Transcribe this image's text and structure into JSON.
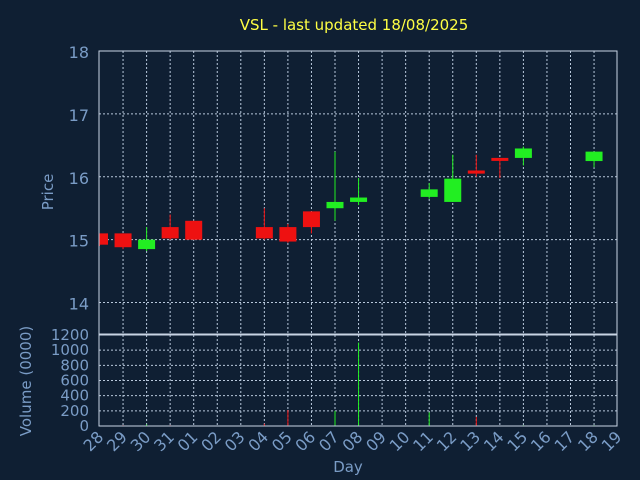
{
  "chart_data": {
    "type": "candlestick",
    "title": "VSL - last updated 18/08/2025",
    "xlabel": "Day",
    "ylabel": "Price",
    "volume_label": "Volume (0000)",
    "x_ticks": [
      "28",
      "29",
      "30",
      "31",
      "01",
      "02",
      "03",
      "04",
      "05",
      "06",
      "07",
      "08",
      "09",
      "10",
      "11",
      "12",
      "13",
      "14",
      "15",
      "16",
      "17",
      "18",
      "19"
    ],
    "price_ylim": [
      13.5,
      18
    ],
    "price_ticks": [
      14,
      15,
      16,
      17,
      18
    ],
    "volume_ylim": [
      0,
      1200
    ],
    "volume_ticks": [
      0,
      200,
      400,
      600,
      800,
      1000,
      1200
    ],
    "grid": true,
    "colors": {
      "background": "#0f1f33",
      "up": "#22ee22",
      "down": "#ee1111",
      "title": "#ffff44",
      "axis_text": "#7a9cc6",
      "grid": "#b8c8dc",
      "frame": "#c8d4e4"
    },
    "candles": [
      {
        "day": "28",
        "open": 15.1,
        "high": 15.1,
        "low": 14.9,
        "close": 14.92,
        "volume": 0
      },
      {
        "day": "29",
        "open": 15.1,
        "high": 15.1,
        "low": 14.85,
        "close": 14.88,
        "volume": 10
      },
      {
        "day": "30",
        "open": 14.85,
        "high": 15.2,
        "low": 14.82,
        "close": 15.0,
        "volume": 20
      },
      {
        "day": "31",
        "open": 15.2,
        "high": 15.4,
        "low": 15.0,
        "close": 15.02,
        "volume": 10
      },
      {
        "day": "01",
        "open": 15.3,
        "high": 15.3,
        "low": 15.0,
        "close": 15.0,
        "volume": 5
      },
      {
        "day": "04",
        "open": 15.2,
        "high": 15.5,
        "low": 15.0,
        "close": 15.02,
        "volume": 30
      },
      {
        "day": "05",
        "open": 15.2,
        "high": 15.25,
        "low": 14.95,
        "close": 14.97,
        "volume": 210
      },
      {
        "day": "06",
        "open": 15.45,
        "high": 15.45,
        "low": 15.1,
        "close": 15.2,
        "volume": 0
      },
      {
        "day": "07",
        "open": 15.5,
        "high": 16.4,
        "low": 15.3,
        "close": 15.6,
        "volume": 200
      },
      {
        "day": "08",
        "open": 15.6,
        "high": 15.98,
        "low": 15.55,
        "close": 15.67,
        "volume": 1100
      },
      {
        "day": "11",
        "open": 15.68,
        "high": 15.9,
        "low": 15.65,
        "close": 15.8,
        "volume": 180
      },
      {
        "day": "12",
        "open": 15.6,
        "high": 16.35,
        "low": 15.6,
        "close": 15.97,
        "volume": 0
      },
      {
        "day": "13",
        "open": 16.1,
        "high": 16.35,
        "low": 16.0,
        "close": 16.05,
        "volume": 120
      },
      {
        "day": "14",
        "open": 16.3,
        "high": 16.3,
        "low": 15.98,
        "close": 16.26,
        "volume": 0
      },
      {
        "day": "15",
        "open": 16.3,
        "high": 16.48,
        "low": 16.18,
        "close": 16.45,
        "volume": 10
      },
      {
        "day": "18",
        "open": 16.25,
        "high": 16.4,
        "low": 16.15,
        "close": 16.4,
        "volume": 10
      }
    ]
  }
}
